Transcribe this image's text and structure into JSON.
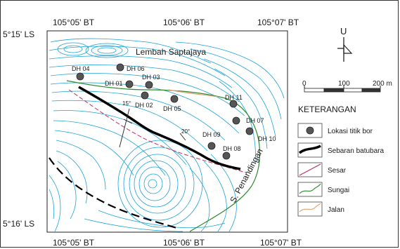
{
  "coords": {
    "top": [
      "105°05' BT",
      "105°06' BT",
      "105°07' BT"
    ],
    "bottom": [
      "105°05' BT",
      "105°06' BT",
      "105°07' BT"
    ],
    "left": [
      "5°15' LS",
      "5°16' LS"
    ]
  },
  "place_labels": {
    "valley": "Lembah Saptajaya",
    "river": "S. Penandingan"
  },
  "dip_labels": [
    "15°",
    "20°"
  ],
  "drill_holes": [
    {
      "id": "DH 04"
    },
    {
      "id": "DH 06"
    },
    {
      "id": "DH 01"
    },
    {
      "id": "DH 03"
    },
    {
      "id": "DH 02"
    },
    {
      "id": "DH 05"
    },
    {
      "id": "DH 11"
    },
    {
      "id": "DH 07"
    },
    {
      "id": "DH 10"
    },
    {
      "id": "DH 09"
    },
    {
      "id": "DH 08"
    }
  ],
  "north_arrow": {
    "letter": "U",
    "icon": "north-arrow-icon"
  },
  "scale_bar": {
    "labels": [
      "0",
      "100",
      "200 m"
    ]
  },
  "legend": {
    "title": "KETERANGAN",
    "items": [
      {
        "label": "Lokasi titik bor",
        "icon": "drill-point-icon",
        "color": "#555555"
      },
      {
        "label": "Sebaran batubara",
        "icon": "coal-line-icon",
        "color": "#000000"
      },
      {
        "label": "Sesar",
        "icon": "fault-line-icon",
        "color": "#c0305a"
      },
      {
        "label": "Sungai",
        "icon": "river-line-icon",
        "color": "#2e8b2e"
      },
      {
        "label": "Jalan",
        "icon": "road-line-icon",
        "color": "#e8a070"
      }
    ]
  },
  "colors": {
    "contour": "#1aa3d8",
    "coal": "#000000",
    "fault": "#c0305a",
    "river": "#2e8b2e",
    "road": "#e8a070"
  }
}
